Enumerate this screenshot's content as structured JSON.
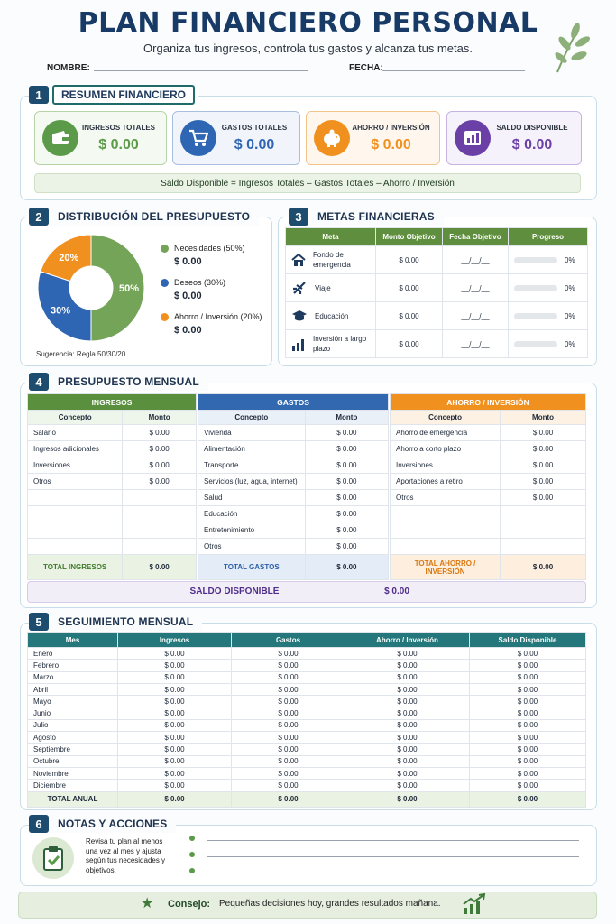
{
  "header": {
    "title": "PLAN FINANCIERO PERSONAL",
    "subtitle": "Organiza tus ingresos, controla tus gastos y alcanza tus metas.",
    "name_label": "NOMBRE:",
    "date_label": "FECHA:"
  },
  "s1": {
    "num": "1",
    "title": "RESUMEN FINANCIERO",
    "cards": [
      {
        "label": "INGRESOS TOTALES",
        "value": "$ 0.00",
        "icon": "wallet-icon",
        "color": "#5a9a48"
      },
      {
        "label": "GASTOS TOTALES",
        "value": "$ 0.00",
        "icon": "cart-icon",
        "color": "#2f66b3"
      },
      {
        "label": "AHORRO / INVERSIÓN",
        "value": "$ 0.00",
        "icon": "piggy-bank-icon",
        "color": "#f0901f"
      },
      {
        "label": "SALDO DISPONIBLE",
        "value": "$ 0.00",
        "icon": "bar-chart-icon",
        "color": "#6a3fa6"
      }
    ],
    "formula": "Saldo Disponible = Ingresos Totales – Gastos Totales – Ahorro / Inversión"
  },
  "s2": {
    "num": "2",
    "title": "DISTRIBUCIÓN DEL PRESUPUESTO",
    "slices": [
      {
        "pct": "50%",
        "value": 50,
        "color": "#74a457"
      },
      {
        "pct": "30%",
        "value": 30,
        "color": "#2f66b3"
      },
      {
        "pct": "20%",
        "value": 20,
        "color": "#f0901f"
      }
    ],
    "legend": [
      {
        "label": "Necesidades (50%)",
        "value": "$ 0.00",
        "color": "#74a457"
      },
      {
        "label": "Deseos (30%)",
        "value": "$ 0.00",
        "color": "#2f66b3"
      },
      {
        "label": "Ahorro / Inversión (20%)",
        "value": "$ 0.00",
        "color": "#f0901f"
      }
    ],
    "suggestion": "Sugerencia: Regla 50/30/20"
  },
  "s3": {
    "num": "3",
    "title": "METAS FINANCIERAS",
    "headers": [
      "Meta",
      "Monto Objetivo",
      "Fecha Objetivo",
      "Progreso"
    ],
    "rows": [
      {
        "icon": "house-icon",
        "meta": "Fondo de emergencia",
        "monto": "$ 0.00",
        "fecha": "__/__/__",
        "pct": "0%",
        "progress": 0
      },
      {
        "icon": "plane-icon",
        "meta": "Viaje",
        "monto": "$ 0.00",
        "fecha": "__/__/__",
        "pct": "0%",
        "progress": 0
      },
      {
        "icon": "graduation-cap-icon",
        "meta": "Educación",
        "monto": "$ 0.00",
        "fecha": "__/__/__",
        "pct": "0%",
        "progress": 0
      },
      {
        "icon": "growth-chart-icon",
        "meta": "Inversión a largo plazo",
        "monto": "$ 0.00",
        "fecha": "__/__/__",
        "pct": "0%",
        "progress": 0
      }
    ]
  },
  "s4": {
    "num": "4",
    "title": "PRESUPUESTO MENSUAL",
    "ingresos": {
      "title": "INGRESOS",
      "col1": "Concepto",
      "col2": "Monto",
      "rows": [
        [
          "Salario",
          "$ 0.00"
        ],
        [
          "Ingresos adicionales",
          "$ 0.00"
        ],
        [
          "Inversiones",
          "$ 0.00"
        ],
        [
          "Otros",
          "$ 0.00"
        ],
        [
          "",
          ""
        ],
        [
          "",
          ""
        ],
        [
          "",
          ""
        ],
        [
          "",
          ""
        ]
      ],
      "total_label": "TOTAL INGRESOS",
      "total": "$ 0.00"
    },
    "gastos": {
      "title": "GASTOS",
      "col1": "Concepto",
      "col2": "Monto",
      "rows": [
        [
          "Vivienda",
          "$ 0.00"
        ],
        [
          "Alimentación",
          "$ 0.00"
        ],
        [
          "Transporte",
          "$ 0.00"
        ],
        [
          "Servicios (luz, agua, internet)",
          "$ 0.00"
        ],
        [
          "Salud",
          "$ 0.00"
        ],
        [
          "Educación",
          "$ 0.00"
        ],
        [
          "Entretenimiento",
          "$ 0.00"
        ],
        [
          "Otros",
          "$ 0.00"
        ]
      ],
      "total_label": "TOTAL GASTOS",
      "total": "$ 0.00"
    },
    "ahorro": {
      "title": "AHORRO / INVERSIÓN",
      "col1": "Concepto",
      "col2": "Monto",
      "rows": [
        [
          "Ahorro de emergencia",
          "$ 0.00"
        ],
        [
          "Ahorro a corto plazo",
          "$ 0.00"
        ],
        [
          "Inversiones",
          "$ 0.00"
        ],
        [
          "Aportaciones a retiro",
          "$ 0.00"
        ],
        [
          "Otros",
          "$ 0.00"
        ],
        [
          "",
          ""
        ],
        [
          "",
          ""
        ],
        [
          "",
          ""
        ]
      ],
      "total_label": "TOTAL AHORRO / INVERSIÓN",
      "total": "$ 0.00"
    },
    "saldo_label": "SALDO DISPONIBLE",
    "saldo": "$ 0.00"
  },
  "s5": {
    "num": "5",
    "title": "SEGUIMIENTO MENSUAL",
    "headers": [
      "Mes",
      "Ingresos",
      "Gastos",
      "Ahorro / Inversión",
      "Saldo Disponible"
    ],
    "months": [
      "Enero",
      "Febrero",
      "Marzo",
      "Abril",
      "Mayo",
      "Junio",
      "Julio",
      "Agosto",
      "Septiembre",
      "Octubre",
      "Noviembre",
      "Diciembre"
    ],
    "value": "$ 0.00",
    "total_label": "TOTAL ANUAL"
  },
  "s6": {
    "num": "6",
    "title": "NOTAS Y ACCIONES",
    "note": "Revisa tu plan al menos una vez al mes y ajusta según tus necesidades y objetivos."
  },
  "footer": {
    "label": "Consejo:",
    "text": "Pequeñas decisiones hoy, grandes resultados mañana."
  }
}
